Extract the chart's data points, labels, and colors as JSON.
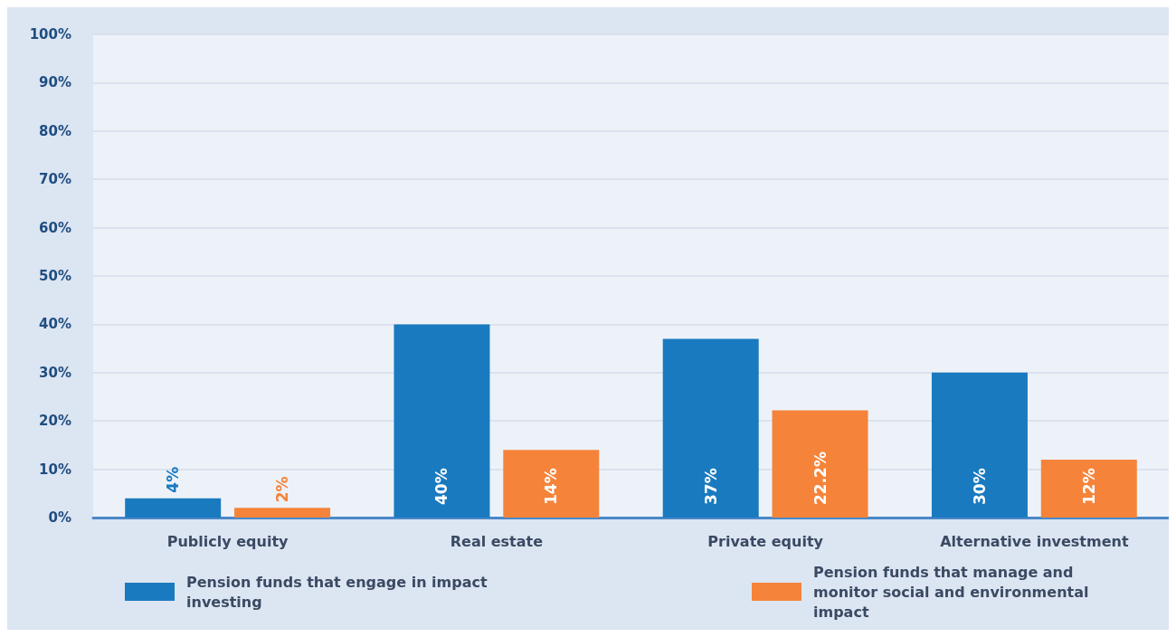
{
  "chart_data": {
    "type": "bar",
    "categories": [
      "Publicly equity",
      "Real estate",
      "Private equity",
      "Alternative investment"
    ],
    "series": [
      {
        "name": "Pension funds that engage in impact investing",
        "color": "#1a7abf",
        "values": [
          4,
          40,
          37,
          30
        ],
        "value_labels": [
          "4%",
          "40%",
          "37%",
          "30%"
        ]
      },
      {
        "name": "Pension funds that manage and monitor social and environmental impact",
        "color": "#f5843a",
        "values": [
          2,
          14,
          22.2,
          12
        ],
        "value_labels": [
          "2%",
          "14%",
          "22.2%",
          "12%"
        ]
      }
    ],
    "ylim": [
      0,
      100
    ],
    "yticks": [
      {
        "value": 0,
        "label": "0%"
      },
      {
        "value": 10,
        "label": "10%"
      },
      {
        "value": 20,
        "label": "20%"
      },
      {
        "value": 30,
        "label": "30%"
      },
      {
        "value": 40,
        "label": "40%"
      },
      {
        "value": 50,
        "label": "50%"
      },
      {
        "value": 60,
        "label": "60%"
      },
      {
        "value": 70,
        "label": "70%"
      },
      {
        "value": 80,
        "label": "80%"
      },
      {
        "value": 90,
        "label": "90%"
      },
      {
        "value": 100,
        "label": "100%"
      }
    ],
    "grid": "y",
    "legend": "bottom"
  }
}
